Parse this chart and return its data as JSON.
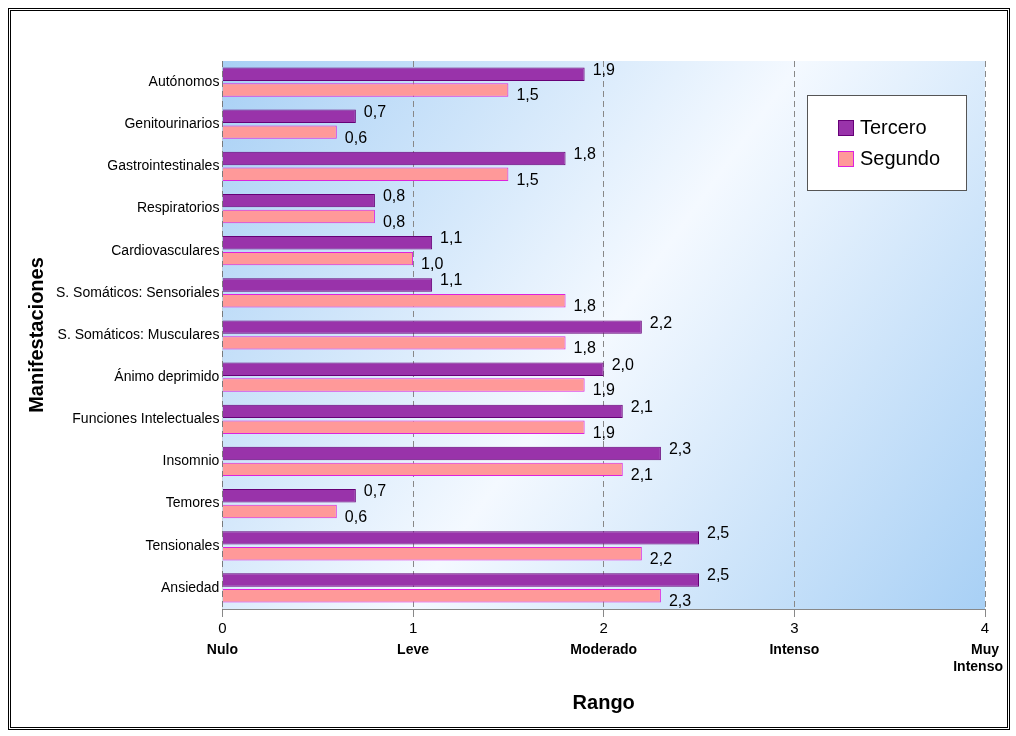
{
  "chart_data": {
    "type": "bar",
    "orientation": "horizontal",
    "xlabel": "Rango",
    "ylabel": "Manifestaciones",
    "categories": [
      "Autónomos",
      "Genitourinarios",
      "Gastrointestinales",
      "Respiratorios",
      "Cardiovasculares",
      "S. Somáticos: Sensoriales",
      "S. Somáticos: Musculares",
      "Ánimo deprimido",
      "Funciones Intelectuales",
      "Insomnio",
      "Temores",
      "Tensionales",
      "Ansiedad"
    ],
    "series": [
      {
        "name": "Tercero",
        "color": "#9933aa",
        "values": [
          1.9,
          0.7,
          1.8,
          0.8,
          1.1,
          1.1,
          2.2,
          2.0,
          2.1,
          2.3,
          0.7,
          2.5,
          2.5
        ],
        "value_labels": [
          "1,9",
          "0,7",
          "1,8",
          "0,8",
          "1,1",
          "1,1",
          "2,2",
          "2,0",
          "2,1",
          "2,3",
          "0,7",
          "2,5",
          "2,5"
        ]
      },
      {
        "name": "Segundo",
        "color": "#ff9999",
        "values": [
          1.5,
          0.6,
          1.5,
          0.8,
          1.0,
          1.8,
          1.8,
          1.9,
          1.9,
          2.1,
          0.6,
          2.2,
          2.3
        ],
        "value_labels": [
          "1,5",
          "0,6",
          "1,5",
          "0,8",
          "1,0",
          "1,8",
          "1,8",
          "1,9",
          "1,9",
          "2,1",
          "0,6",
          "2,2",
          "2,3"
        ]
      }
    ],
    "xlim": [
      0,
      4
    ],
    "xticks": [
      0,
      1,
      2,
      3,
      4
    ],
    "annotations": [
      "Nulo",
      "Leve",
      "Moderado",
      "Intenso",
      "Muy Intenso"
    ],
    "grid": "x",
    "legend": "top right"
  }
}
